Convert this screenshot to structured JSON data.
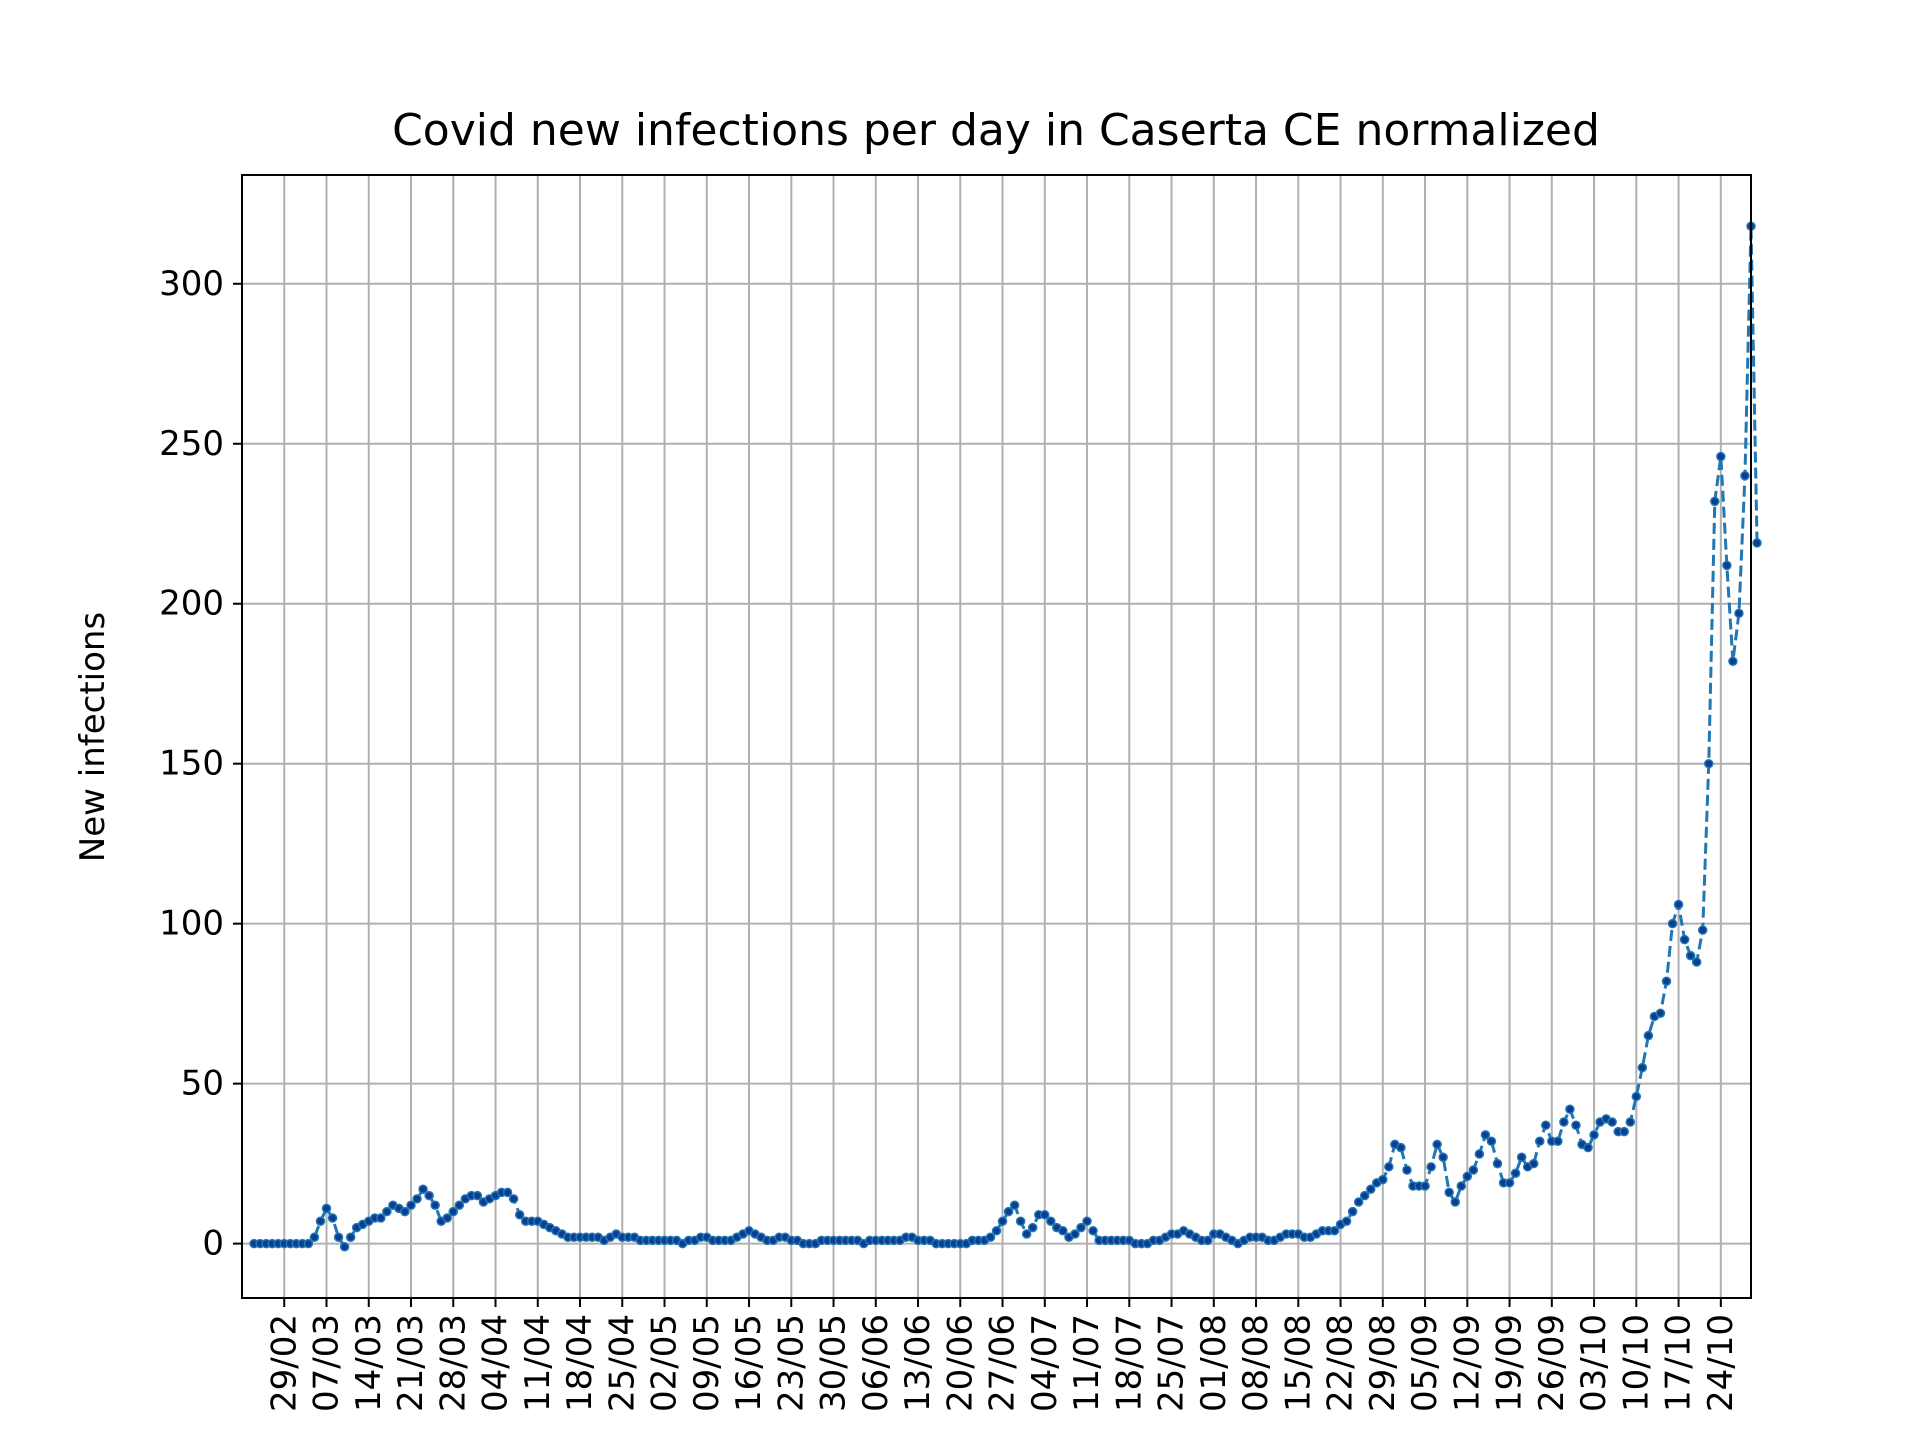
{
  "chart_data": {
    "type": "line",
    "title": "Covid new infections per day in Caserta CE normalized",
    "ylabel": "New infections",
    "xlabel": "",
    "ylim": [
      -17,
      334
    ],
    "yticks": [
      0,
      50,
      100,
      150,
      200,
      250,
      300
    ],
    "xlim": [
      "2020-02-22",
      "2020-10-29"
    ],
    "xtick_dates": [
      "2020-02-29",
      "2020-03-07",
      "2020-03-14",
      "2020-03-21",
      "2020-03-28",
      "2020-04-04",
      "2020-04-11",
      "2020-04-18",
      "2020-04-25",
      "2020-05-02",
      "2020-05-09",
      "2020-05-16",
      "2020-05-23",
      "2020-05-30",
      "2020-06-06",
      "2020-06-13",
      "2020-06-20",
      "2020-06-27",
      "2020-07-04",
      "2020-07-11",
      "2020-07-18",
      "2020-07-25",
      "2020-08-01",
      "2020-08-08",
      "2020-08-15",
      "2020-08-22",
      "2020-08-29",
      "2020-09-05",
      "2020-09-12",
      "2020-09-19",
      "2020-09-26",
      "2020-10-03",
      "2020-10-10",
      "2020-10-17",
      "2020-10-24"
    ],
    "xtick_labels": [
      "29/02",
      "07/03",
      "14/03",
      "21/03",
      "28/03",
      "04/04",
      "11/04",
      "18/04",
      "25/04",
      "02/05",
      "09/05",
      "16/05",
      "23/05",
      "30/05",
      "06/06",
      "13/06",
      "20/06",
      "27/06",
      "04/07",
      "11/07",
      "18/07",
      "25/07",
      "01/08",
      "08/08",
      "15/08",
      "22/08",
      "29/08",
      "05/09",
      "12/09",
      "19/09",
      "26/09",
      "03/10",
      "10/10",
      "17/10",
      "24/10"
    ],
    "grid": true,
    "series": [
      {
        "style": "dashed line with dot markers",
        "color": "#1f77b4",
        "marker_color": "#0b3d91",
        "start_date": "2020-02-24",
        "values": [
          0,
          0,
          0,
          0,
          0,
          0,
          0,
          0,
          0,
          0,
          2,
          7,
          11,
          8,
          2,
          -1,
          2,
          5,
          6,
          7,
          8,
          8,
          10,
          12,
          11,
          10,
          12,
          14,
          17,
          15,
          12,
          7,
          8,
          10,
          12,
          14,
          15,
          15,
          13,
          14,
          15,
          16,
          16,
          14,
          9,
          7,
          7,
          7,
          6,
          5,
          4,
          3,
          2,
          2,
          2,
          2,
          2,
          2,
          1,
          2,
          3,
          2,
          2,
          2,
          1,
          1,
          1,
          1,
          1,
          1,
          1,
          0,
          1,
          1,
          2,
          2,
          1,
          1,
          1,
          1,
          2,
          3,
          4,
          3,
          2,
          1,
          1,
          2,
          2,
          1,
          1,
          0,
          0,
          0,
          1,
          1,
          1,
          1,
          1,
          1,
          1,
          0,
          1,
          1,
          1,
          1,
          1,
          1,
          2,
          2,
          1,
          1,
          1,
          0,
          0,
          0,
          0,
          0,
          0,
          1,
          1,
          1,
          2,
          4,
          7,
          10,
          12,
          7,
          3,
          5,
          9,
          9,
          7,
          5,
          4,
          2,
          3,
          5,
          7,
          4,
          1,
          1,
          1,
          1,
          1,
          1,
          0,
          0,
          0,
          1,
          1,
          2,
          3,
          3,
          4,
          3,
          2,
          1,
          1,
          3,
          3,
          2,
          1,
          0,
          1,
          2,
          2,
          2,
          1,
          1,
          2,
          3,
          3,
          3,
          2,
          2,
          3,
          4,
          4,
          4,
          6,
          7,
          10,
          13,
          15,
          17,
          19,
          20,
          24,
          31,
          30,
          23,
          18,
          18,
          18,
          24,
          31,
          27,
          16,
          13,
          18,
          21,
          23,
          28,
          34,
          32,
          25,
          19,
          19,
          22,
          27,
          24,
          25,
          32,
          37,
          32,
          32,
          38,
          42,
          37,
          31,
          30,
          34,
          38,
          39,
          38,
          35,
          35,
          38,
          46,
          55,
          65,
          71,
          72,
          82,
          100,
          106,
          95,
          90,
          88,
          98,
          150,
          232,
          246,
          212,
          182,
          197,
          240,
          318,
          219
        ]
      }
    ]
  }
}
